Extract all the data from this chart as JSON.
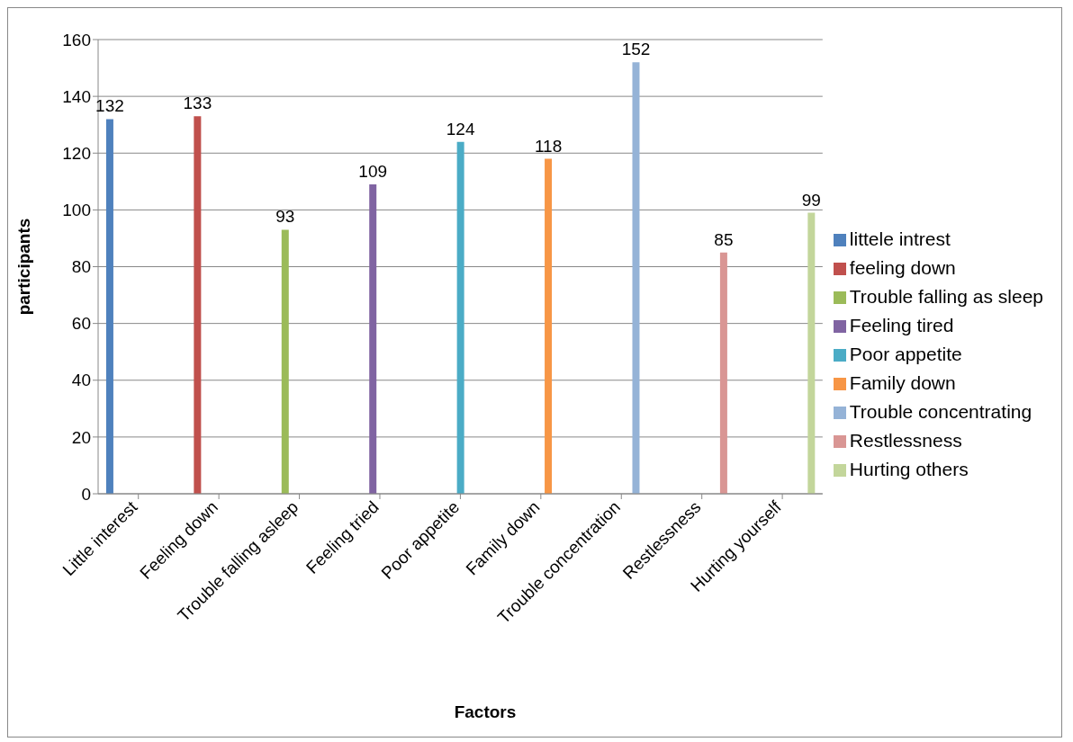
{
  "chart_data": {
    "type": "bar",
    "xlabel": "Factors",
    "ylabel": "participants",
    "categories": [
      "Little interest",
      "Feeling down",
      "Trouble falling asleep",
      "Feeling tried",
      "Poor appetite",
      "Family down",
      "Trouble concentration",
      "Restlessness",
      "Hurting yourself"
    ],
    "series": [
      {
        "name": "littele intrest",
        "color": "#4f81bd",
        "values": [
          132,
          null,
          null,
          null,
          null,
          null,
          null,
          null,
          null
        ]
      },
      {
        "name": "feeling down",
        "color": "#c0504d",
        "values": [
          null,
          133,
          null,
          null,
          null,
          null,
          null,
          null,
          null
        ]
      },
      {
        "name": "Trouble falling as sleep",
        "color": "#9bbb59",
        "values": [
          null,
          null,
          93,
          null,
          null,
          null,
          null,
          null,
          null
        ]
      },
      {
        "name": "Feeling tired",
        "color": "#8064a2",
        "values": [
          null,
          null,
          null,
          109,
          null,
          null,
          null,
          null,
          null
        ]
      },
      {
        "name": "Poor appetite",
        "color": "#4bacc6",
        "values": [
          null,
          null,
          null,
          null,
          124,
          null,
          null,
          null,
          null
        ]
      },
      {
        "name": "Family down",
        "color": "#f79646",
        "values": [
          null,
          null,
          null,
          null,
          null,
          118,
          null,
          null,
          null
        ]
      },
      {
        "name": "Trouble concentrating",
        "color": "#95b3d7",
        "values": [
          null,
          null,
          null,
          null,
          null,
          null,
          152,
          null,
          null
        ]
      },
      {
        "name": "Restlessness",
        "color": "#d99694",
        "values": [
          null,
          null,
          null,
          null,
          null,
          null,
          null,
          85,
          null
        ]
      },
      {
        "name": "Hurting others",
        "color": "#c3d69b",
        "values": [
          null,
          null,
          null,
          null,
          null,
          null,
          null,
          null,
          99
        ]
      }
    ],
    "ylim": [
      0,
      160
    ],
    "yticks": [
      0,
      20,
      40,
      60,
      80,
      100,
      120,
      140,
      160
    ],
    "grid": "y",
    "legend": "right",
    "data_labels": true
  }
}
